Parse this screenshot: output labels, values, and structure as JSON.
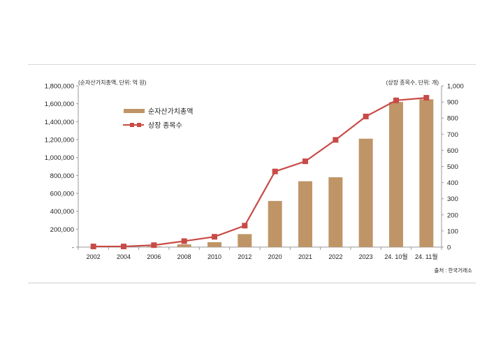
{
  "chart_data": {
    "type": "bar+line",
    "categories": [
      "2002",
      "2004",
      "2006",
      "2008",
      "2010",
      "2012",
      "2020",
      "2021",
      "2022",
      "2023",
      "24. 10월",
      "24. 11월"
    ],
    "series": [
      {
        "name": "순자산가치총액",
        "type": "bar",
        "axis": "left",
        "color": "#bf9567",
        "values": [
          3000,
          5000,
          8000,
          30000,
          55000,
          145000,
          515000,
          735000,
          780000,
          1210000,
          1620000,
          1650000
        ]
      },
      {
        "name": "상장 종목수",
        "type": "line",
        "axis": "right",
        "color": "#c84a46",
        "values": [
          4,
          4,
          12,
          37,
          64,
          133,
          469,
          532,
          665,
          810,
          910,
          926
        ]
      }
    ],
    "left_axis": {
      "label": "(순자산가치총액, 단위: 억 원)",
      "ylim": [
        0,
        1800000
      ],
      "ticks": [
        "-",
        "200,000",
        "400,000",
        "600,000",
        "800,000",
        "1,000,000",
        "1,200,000",
        "1,400,000",
        "1,600,000",
        "1,800,000"
      ]
    },
    "right_axis": {
      "label": "(상장 종목수, 단위: 개)",
      "ylim": [
        0,
        1000
      ],
      "ticks": [
        "0",
        "100",
        "200",
        "300",
        "400",
        "500",
        "600",
        "700",
        "800",
        "900",
        "1,000"
      ]
    },
    "legend_position": "top-left",
    "source": "출처 : 한국거래소",
    "grid": false
  }
}
